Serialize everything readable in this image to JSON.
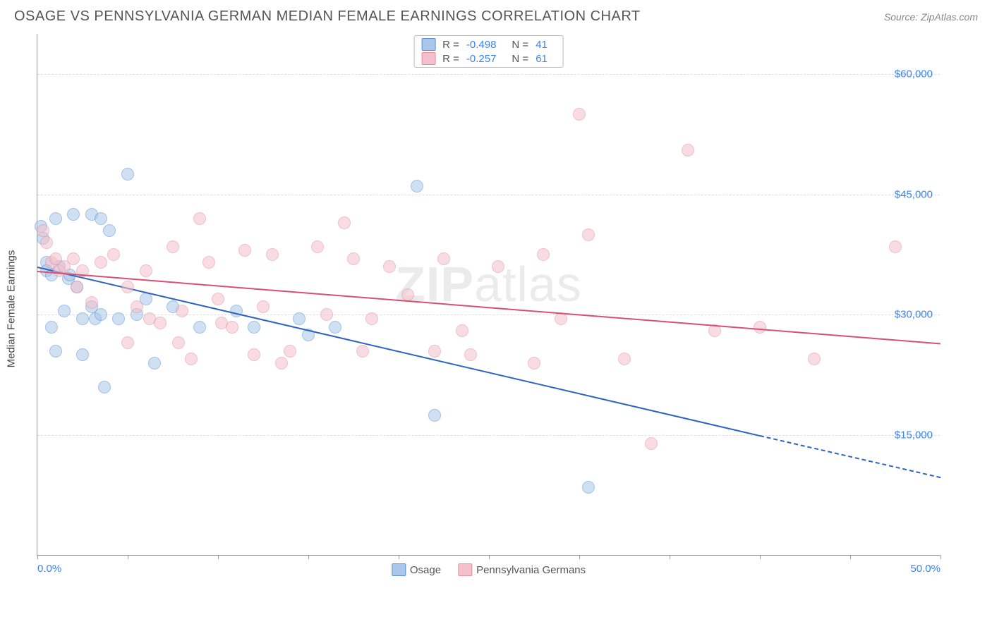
{
  "header": {
    "title": "OSAGE VS PENNSYLVANIA GERMAN MEDIAN FEMALE EARNINGS CORRELATION CHART",
    "source_prefix": "Source: ",
    "source_name": "ZipAtlas.com"
  },
  "chart": {
    "type": "scatter",
    "ylabel": "Median Female Earnings",
    "watermark_a": "ZIP",
    "watermark_b": "atlas",
    "background_color": "#ffffff",
    "grid_color": "#dddddd",
    "axis_color": "#999999",
    "text_color": "#444444",
    "value_color": "#3b82f6",
    "xlim": [
      0,
      50
    ],
    "ylim": [
      0,
      65000
    ],
    "xtick_positions": [
      0,
      5,
      10,
      15,
      20,
      25,
      30,
      35,
      40,
      45,
      50
    ],
    "xtick_labels": {
      "0": "0.0%",
      "50": "50.0%"
    },
    "ytick_positions": [
      15000,
      30000,
      45000,
      60000
    ],
    "ytick_labels": {
      "15000": "$15,000",
      "30000": "$30,000",
      "45000": "$45,000",
      "60000": "$60,000"
    },
    "marker_radius": 9,
    "marker_opacity": 0.55,
    "series": [
      {
        "name": "Osage",
        "fill_color": "#a9c7ea",
        "stroke_color": "#5b8fd0",
        "line_color": "#2f63c0",
        "R": "-0.498",
        "N": "41",
        "trend": {
          "x1": 0,
          "y1": 36000,
          "x2": 40,
          "y2": 15000,
          "extrap_x2": 50,
          "extrap_y2": 9800
        },
        "points": [
          [
            0.2,
            41000
          ],
          [
            0.3,
            39500
          ],
          [
            0.5,
            36500
          ],
          [
            0.5,
            35500
          ],
          [
            0.8,
            35000
          ],
          [
            0.8,
            28500
          ],
          [
            1.0,
            25500
          ],
          [
            1.0,
            42000
          ],
          [
            1.2,
            36000
          ],
          [
            1.5,
            30500
          ],
          [
            1.7,
            34500
          ],
          [
            1.8,
            35000
          ],
          [
            2.0,
            42500
          ],
          [
            2.2,
            33500
          ],
          [
            2.5,
            25000
          ],
          [
            2.5,
            29500
          ],
          [
            3.0,
            42500
          ],
          [
            3.0,
            31000
          ],
          [
            3.2,
            29500
          ],
          [
            3.5,
            42000
          ],
          [
            3.5,
            30000
          ],
          [
            3.7,
            21000
          ],
          [
            4.0,
            40500
          ],
          [
            4.5,
            29500
          ],
          [
            5.0,
            47500
          ],
          [
            5.5,
            30000
          ],
          [
            6.0,
            32000
          ],
          [
            6.5,
            24000
          ],
          [
            7.5,
            31000
          ],
          [
            9.0,
            28500
          ],
          [
            11.0,
            30500
          ],
          [
            12.0,
            28500
          ],
          [
            14.5,
            29500
          ],
          [
            15.0,
            27500
          ],
          [
            16.5,
            28500
          ],
          [
            21.0,
            46000
          ],
          [
            22.0,
            17500
          ],
          [
            30.5,
            8500
          ]
        ]
      },
      {
        "name": "Pennsylvania Germans",
        "fill_color": "#f3c0cb",
        "stroke_color": "#e28ea0",
        "line_color": "#d94f72",
        "R": "-0.257",
        "N": "61",
        "trend": {
          "x1": 0,
          "y1": 35500,
          "x2": 50,
          "y2": 26500
        },
        "points": [
          [
            0.3,
            40500
          ],
          [
            0.5,
            39000
          ],
          [
            0.8,
            36500
          ],
          [
            1.0,
            37000
          ],
          [
            1.2,
            35500
          ],
          [
            1.5,
            36000
          ],
          [
            2.0,
            37000
          ],
          [
            2.2,
            33500
          ],
          [
            2.5,
            35500
          ],
          [
            3.0,
            31500
          ],
          [
            3.5,
            36500
          ],
          [
            4.2,
            37500
          ],
          [
            5.0,
            33500
          ],
          [
            5.0,
            26500
          ],
          [
            5.5,
            31000
          ],
          [
            6.0,
            35500
          ],
          [
            6.2,
            29500
          ],
          [
            6.8,
            29000
          ],
          [
            7.5,
            38500
          ],
          [
            7.8,
            26500
          ],
          [
            8.0,
            30500
          ],
          [
            8.5,
            24500
          ],
          [
            9.0,
            42000
          ],
          [
            9.5,
            36500
          ],
          [
            10.0,
            32000
          ],
          [
            10.2,
            29000
          ],
          [
            10.8,
            28500
          ],
          [
            11.5,
            38000
          ],
          [
            12.0,
            25000
          ],
          [
            12.5,
            31000
          ],
          [
            13.0,
            37500
          ],
          [
            13.5,
            24000
          ],
          [
            14.0,
            25500
          ],
          [
            15.5,
            38500
          ],
          [
            16.0,
            30000
          ],
          [
            17.0,
            41500
          ],
          [
            17.5,
            37000
          ],
          [
            18.0,
            25500
          ],
          [
            18.5,
            29500
          ],
          [
            19.5,
            36000
          ],
          [
            20.5,
            32500
          ],
          [
            22.0,
            25500
          ],
          [
            22.5,
            37000
          ],
          [
            23.5,
            28000
          ],
          [
            24.0,
            25000
          ],
          [
            25.5,
            36000
          ],
          [
            27.5,
            24000
          ],
          [
            28.0,
            37500
          ],
          [
            29.0,
            29500
          ],
          [
            30.0,
            55000
          ],
          [
            30.5,
            40000
          ],
          [
            32.5,
            24500
          ],
          [
            34.0,
            14000
          ],
          [
            36.0,
            50500
          ],
          [
            37.5,
            28000
          ],
          [
            40.0,
            28500
          ],
          [
            43.0,
            24500
          ],
          [
            47.5,
            38500
          ]
        ]
      }
    ],
    "legend_top": {
      "R_label": "R =",
      "N_label": "N ="
    },
    "legend_bottom_labels": [
      "Osage",
      "Pennsylvania Germans"
    ]
  }
}
